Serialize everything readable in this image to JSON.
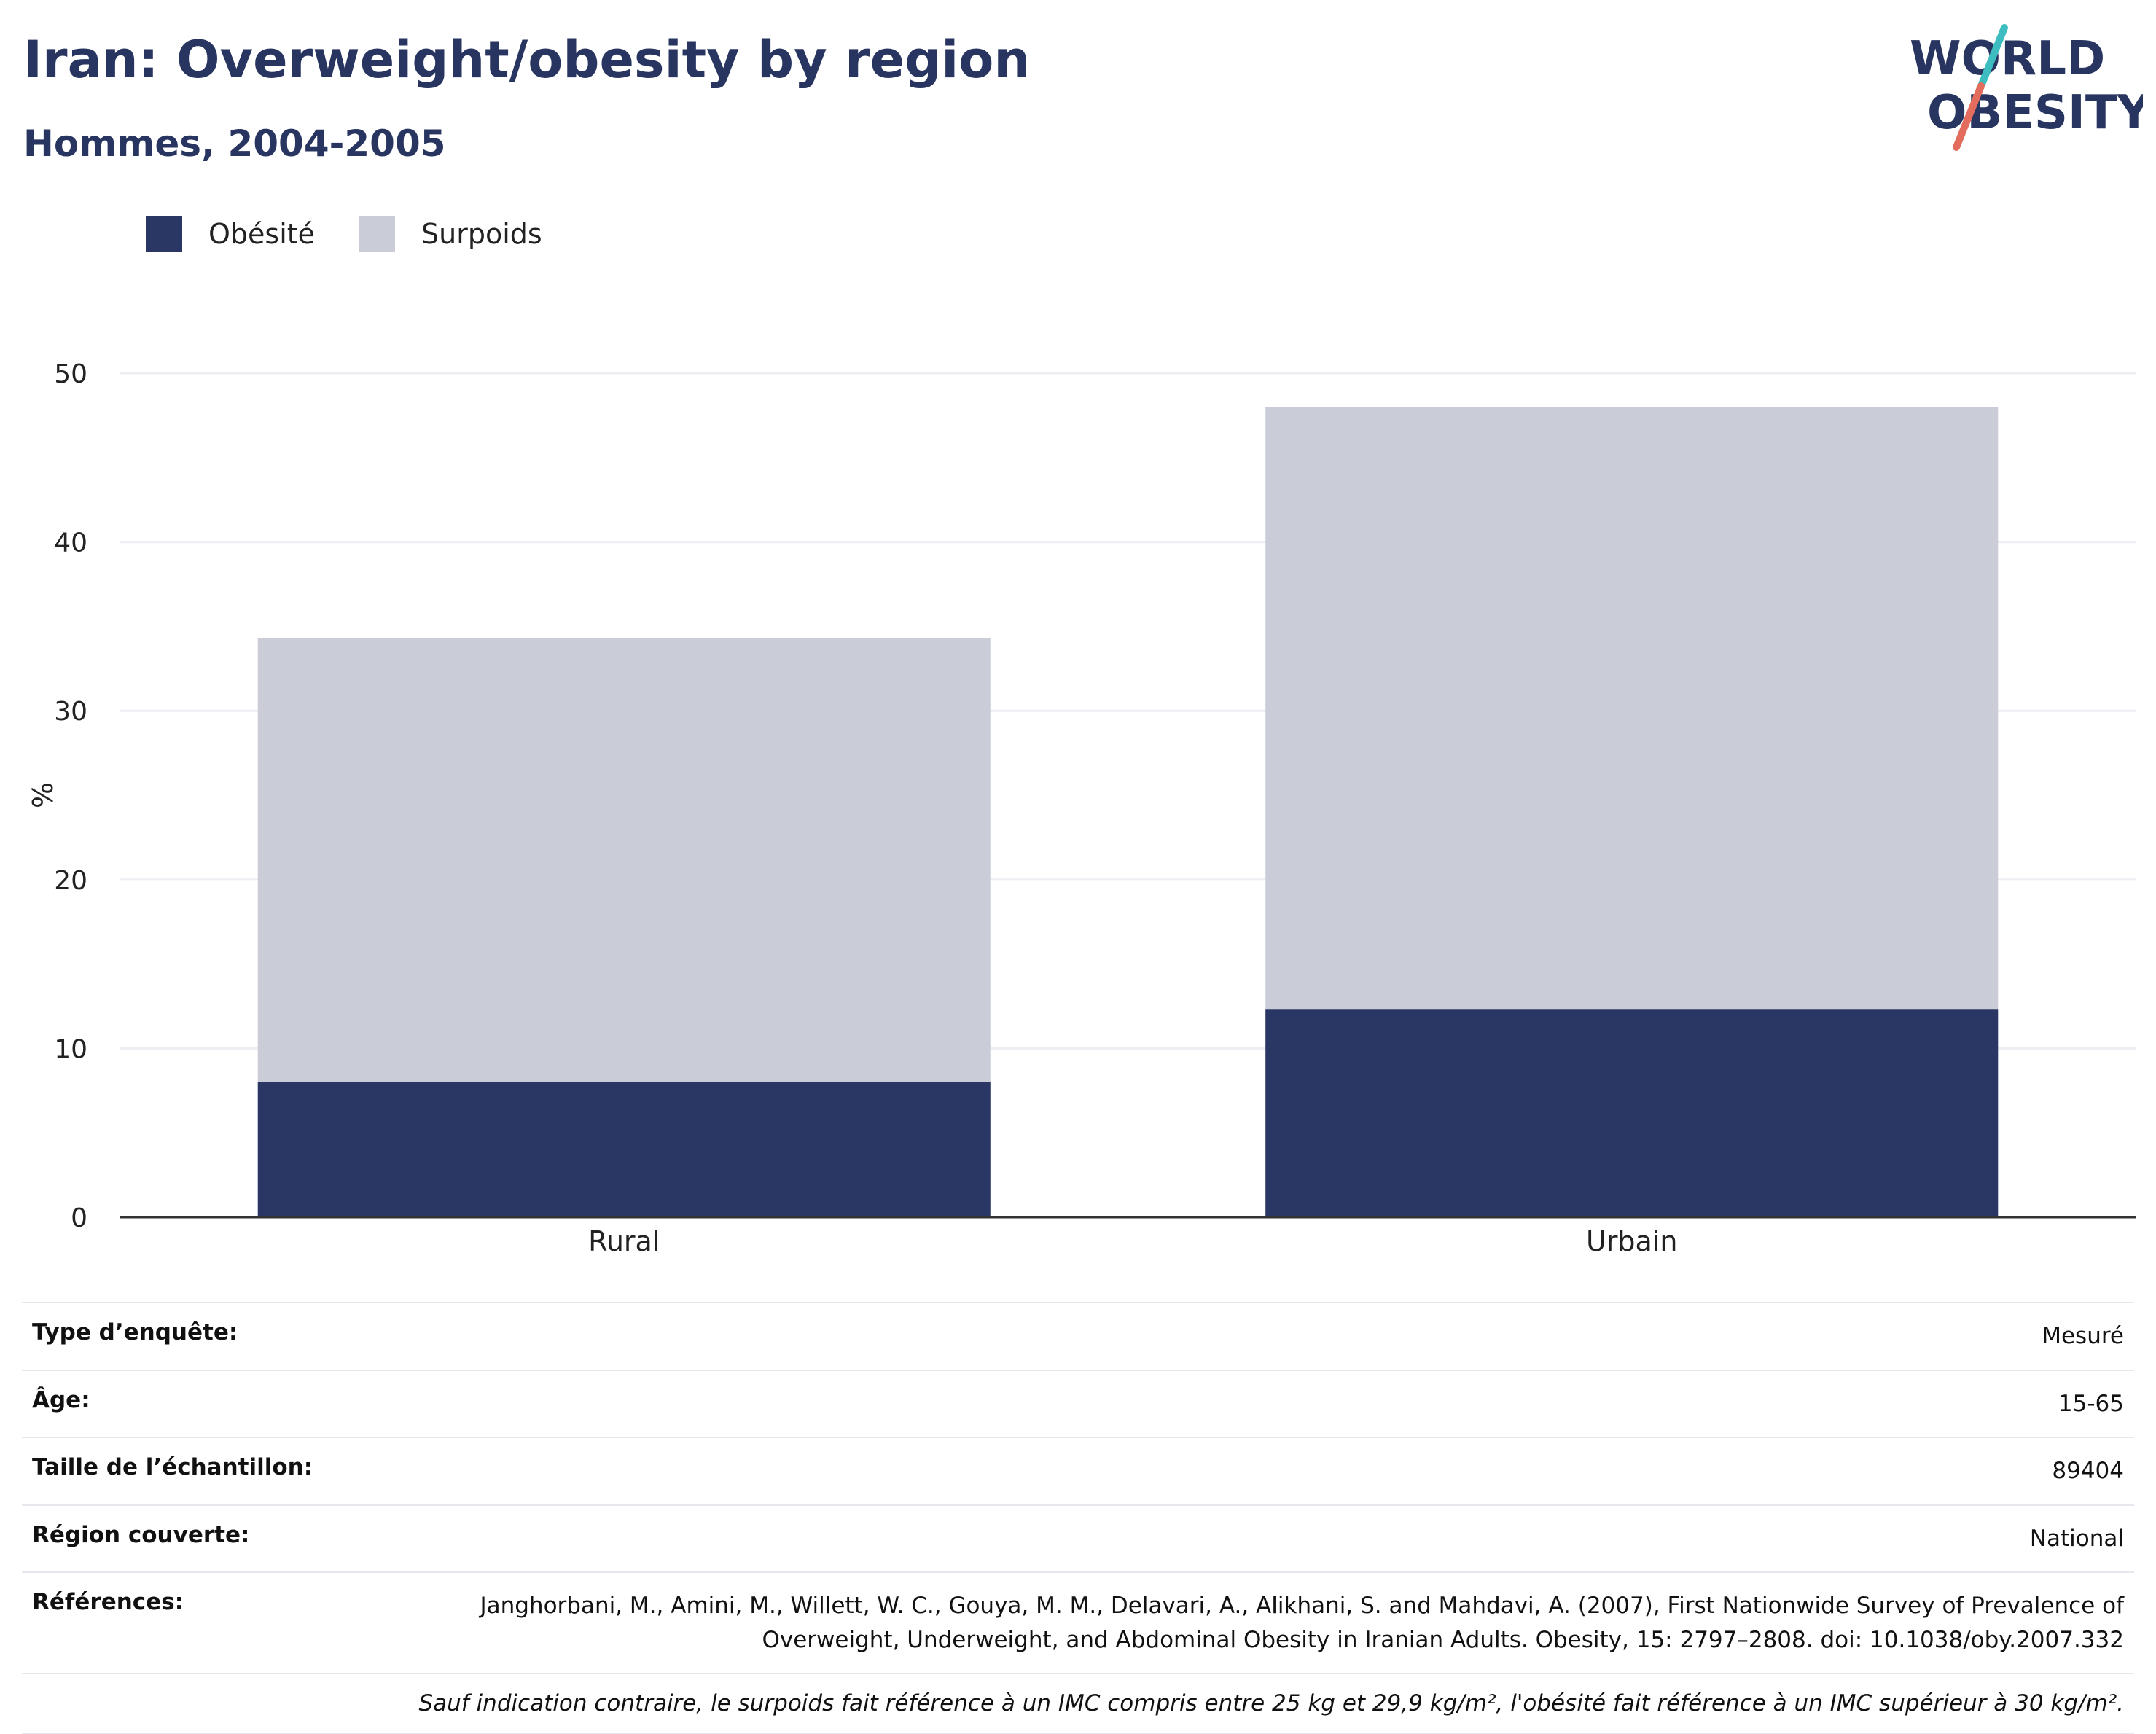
{
  "header": {
    "title": "Iran: Overweight/obesity by region",
    "subtitle": "Hommes, 2004-2005"
  },
  "logo": {
    "line1": "WORLD",
    "line2": "OBESITY",
    "icon": "world-obesity-logo"
  },
  "colors": {
    "obesity": "#2a3663",
    "overweight": "#cacdd8",
    "brand_dark": "#283561",
    "brand_teal": "#3dbdbf",
    "brand_coral": "#e36c5d",
    "grid": "#eceef2",
    "axis": "#333333"
  },
  "chart_data": {
    "type": "bar",
    "stacked": true,
    "categories": [
      "Rural",
      "Urbain"
    ],
    "series": [
      {
        "name": "Obésité",
        "values": [
          8.0,
          12.3
        ]
      },
      {
        "name": "Surpoids",
        "values": [
          26.3,
          35.7
        ]
      }
    ],
    "ylabel": "%",
    "ylim": [
      0,
      50
    ],
    "yticks": [
      0,
      10,
      20,
      30,
      40,
      50
    ],
    "grid": true,
    "legend": "top-left"
  },
  "metadata": {
    "rows": [
      {
        "label": "Type d’enquête:",
        "value": "Mesuré"
      },
      {
        "label": "Âge:",
        "value": "15-65"
      },
      {
        "label": "Taille de l’échantillon:",
        "value": "89404"
      },
      {
        "label": "Région couverte:",
        "value": "National"
      },
      {
        "label": "Références:",
        "value": "Janghorbani, M., Amini, M., Willett, W. C., Gouya, M. M., Delavari, A., Alikhani, S. and Mahdavi, A. (2007), First Nationwide Survey of Prevalence of Overweight, Underweight, and Abdominal Obesity in Iranian Adults. Obesity, 15: 2797–2808. doi: 10.1038/oby.2007.332"
      }
    ],
    "note": "Sauf indication contraire, le surpoids fait référence à un IMC compris entre 25 kg et 29,9 kg/m², l'obésité fait référence à un IMC supérieur à 30 kg/m²."
  }
}
